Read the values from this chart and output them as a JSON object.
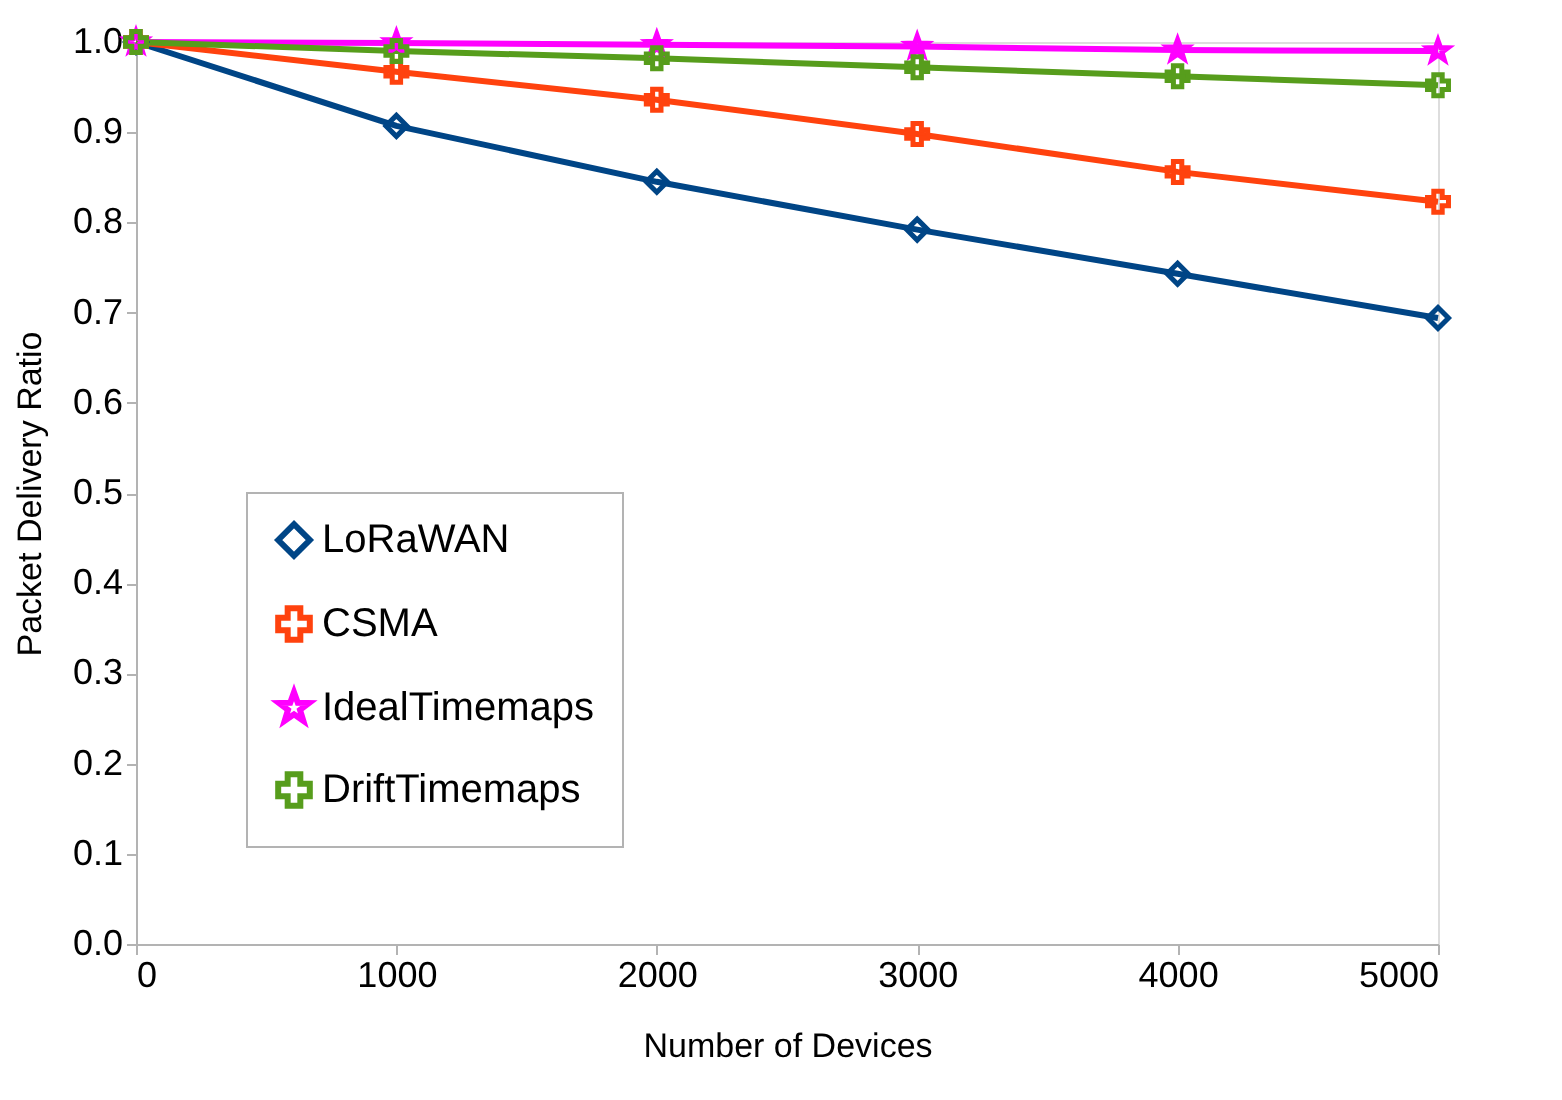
{
  "chart_data": {
    "type": "line",
    "xlabel": "Number of Devices",
    "ylabel": "Packet Delivery Ratio",
    "x": [
      0,
      1000,
      2000,
      3000,
      4000,
      5000
    ],
    "xlim": [
      0,
      5000
    ],
    "xticks": [
      0,
      1000,
      2000,
      3000,
      4000,
      5000
    ],
    "ylim": [
      0.0,
      1.0
    ],
    "yticks": [
      {
        "value": 0,
        "label": "0.0"
      },
      0.1,
      0.2,
      0.3,
      0.4,
      0.5,
      0.6,
      0.7,
      0.8,
      0.9,
      {
        "value": 1,
        "label": "1.0"
      }
    ],
    "grid": false,
    "legend": "left",
    "line_style": "solid",
    "series": [
      {
        "name": "LoRaWAN",
        "color": "#004586",
        "marker": "diamond",
        "values": [
          1.0,
          0.907,
          0.845,
          0.792,
          0.743,
          0.694
        ]
      },
      {
        "name": "CSMA",
        "color": "#ff420e",
        "marker": "cross",
        "values": [
          1.0,
          0.967,
          0.936,
          0.898,
          0.856,
          0.823
        ]
      },
      {
        "name": "IdealTimemaps",
        "color": "#ff00ff",
        "marker": "star",
        "values": [
          1.0,
          0.999,
          0.997,
          0.995,
          0.991,
          0.99
        ]
      },
      {
        "name": "DriftTimemaps",
        "color": "#579d1c",
        "marker": "cross",
        "values": [
          1.0,
          0.99,
          0.982,
          0.972,
          0.962,
          0.952
        ]
      }
    ]
  }
}
